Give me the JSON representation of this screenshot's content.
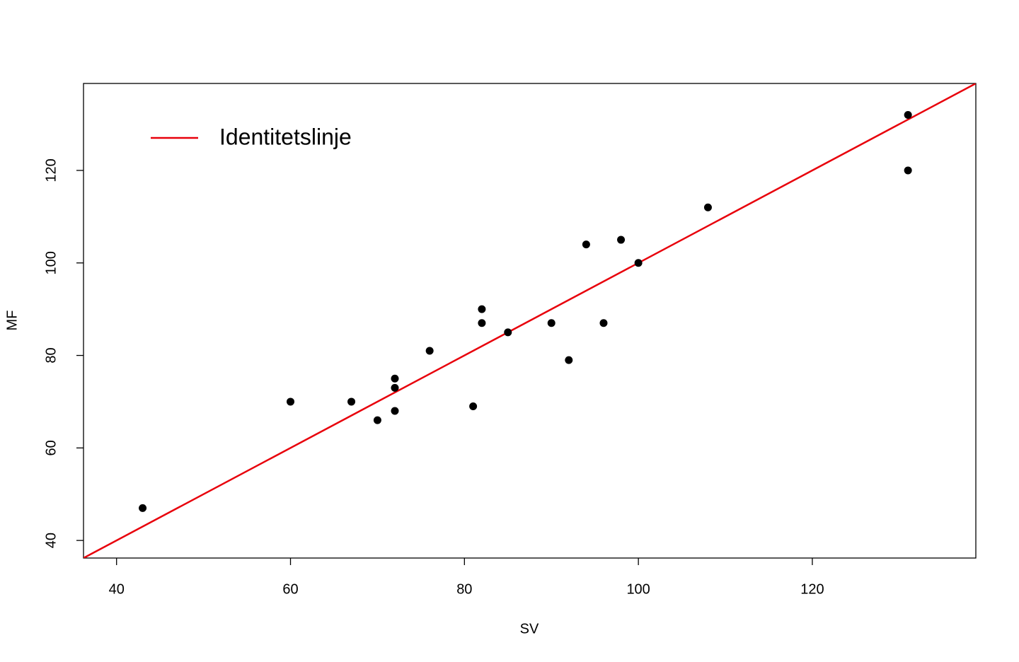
{
  "chart_data": {
    "type": "scatter",
    "x_label": "SV",
    "y_label": "MF",
    "x": [
      43,
      60,
      67,
      70,
      72,
      72,
      72,
      76,
      81,
      82,
      82,
      85,
      90,
      92,
      94,
      96,
      98,
      100,
      108,
      131,
      131
    ],
    "values": [
      47,
      70,
      70,
      66,
      75,
      73,
      68,
      81,
      69,
      90,
      87,
      85,
      87,
      79,
      104,
      87,
      105,
      100,
      112,
      132,
      120
    ],
    "color": "#000000",
    "identity_line": {
      "name": "Identitetslinje",
      "color": "#e8000b"
    },
    "xlim": [
      36.2,
      138.8
    ],
    "ylim": [
      36.2,
      138.8
    ],
    "xticks": [
      40,
      60,
      80,
      100,
      120
    ],
    "yticks": [
      40,
      60,
      80,
      100,
      120
    ],
    "legend": "top-left"
  }
}
